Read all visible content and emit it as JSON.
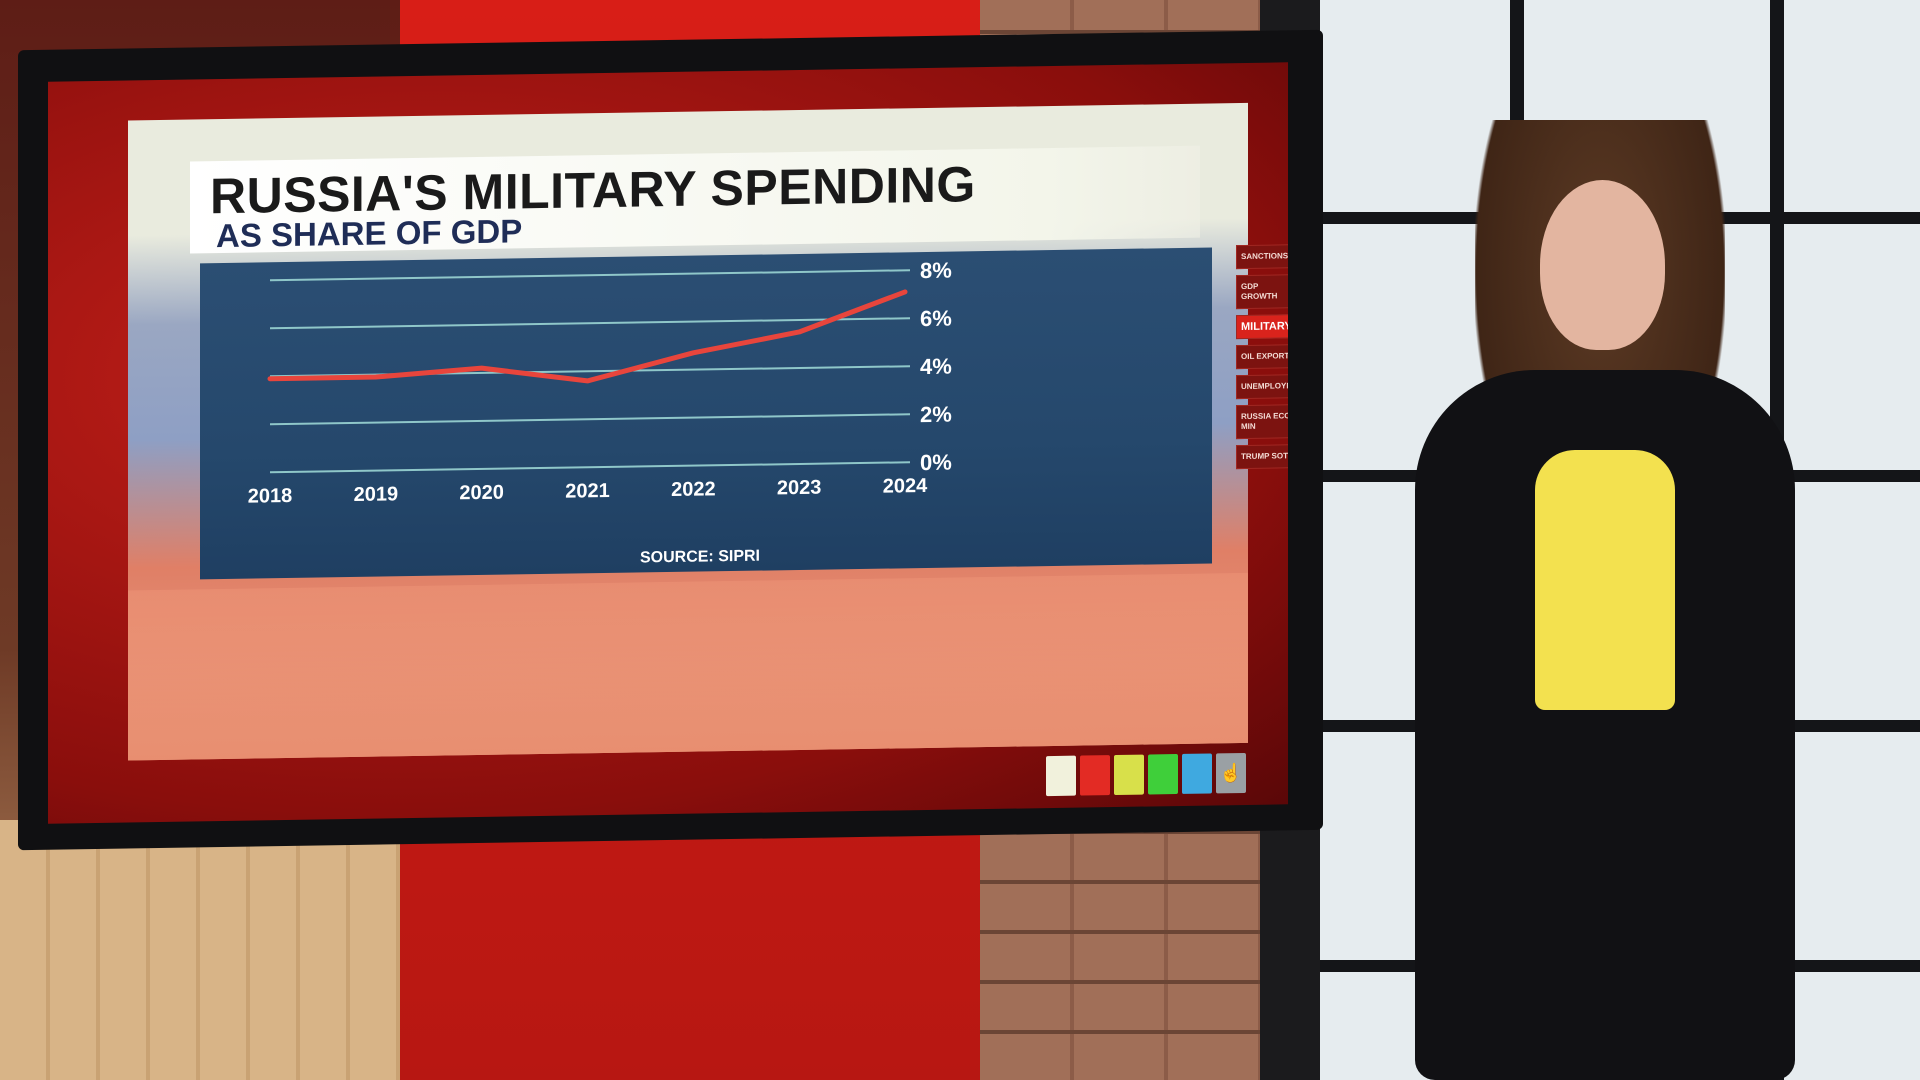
{
  "chart_data": {
    "type": "line",
    "title": "RUSSIA'S MILITARY SPENDING",
    "subtitle": "AS SHARE OF GDP",
    "source": "SOURCE: SIPRI",
    "x": [
      "2018",
      "2019",
      "2020",
      "2021",
      "2022",
      "2023",
      "2024"
    ],
    "series": [
      {
        "values": [
          3.9,
          3.9,
          4.2,
          3.6,
          4.7,
          5.5,
          7.1
        ],
        "color": "#e8453c"
      }
    ],
    "y_ticks": [
      "0%",
      "2%",
      "4%",
      "6%",
      "8%"
    ],
    "ylim": [
      0,
      8
    ],
    "grid": true,
    "line_color": "#e8453c",
    "grid_color": "#8fc7c9"
  },
  "menu": {
    "items": [
      {
        "label": "SANCTIONS",
        "active": false
      },
      {
        "label": "GDP GROWTH",
        "active": false
      },
      {
        "label": "MILITARY",
        "active": true
      },
      {
        "label": "OIL EXPORTS",
        "active": false
      },
      {
        "label": "UNEMPLOYMENT",
        "active": false
      },
      {
        "label": "RUSSIA ECO MIN",
        "active": false
      },
      {
        "label": "TRUMP SOT",
        "active": false
      }
    ]
  },
  "swatches": [
    "#f1f1dc",
    "#e32b24",
    "#d8e04a",
    "#3fcf3a",
    "#3fa9e0",
    "#9aa0a4"
  ],
  "swatch_tool_icon": "hand-pointer-icon"
}
